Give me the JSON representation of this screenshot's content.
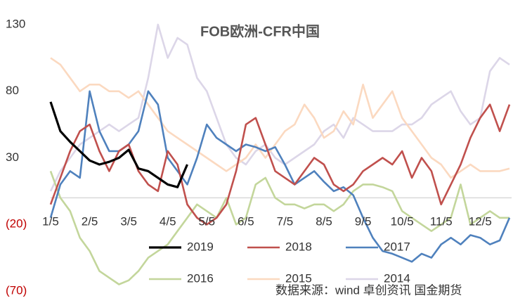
{
  "chart_data": {
    "type": "line",
    "title": "FOB欧洲-CFR中国",
    "source": "数据来源：wind 卓创资讯 国金期货",
    "categories": [
      "1/5",
      null,
      null,
      null,
      "2/5",
      null,
      null,
      null,
      "3/5",
      null,
      null,
      null,
      "4/5",
      null,
      null,
      null,
      "5/5",
      null,
      null,
      null,
      "6/5",
      null,
      null,
      null,
      "7/5",
      null,
      null,
      null,
      "8/5",
      null,
      null,
      null,
      "9/5",
      null,
      null,
      null,
      "10/5",
      null,
      null,
      null,
      "11/5",
      null,
      null,
      null,
      "12/5",
      null,
      null,
      null
    ],
    "ylim": [
      -70,
      130
    ],
    "yticks": [
      130,
      80,
      30,
      {
        "value": -20,
        "label": "(20)"
      },
      {
        "value": -70,
        "label": "(70)"
      }
    ],
    "negative_tick_color": "#c00000",
    "grid": false,
    "series": [
      {
        "name": "2019",
        "color": "#000000",
        "values": [
          72,
          50,
          42,
          35,
          28,
          25,
          27,
          30,
          36,
          22,
          20,
          15,
          10,
          8,
          25,
          null,
          null,
          null,
          null,
          null,
          null,
          null,
          null,
          null,
          null,
          null,
          null,
          null,
          null,
          null,
          null,
          null,
          null,
          null,
          null,
          null,
          null,
          null,
          null,
          null,
          null,
          null,
          null,
          null,
          null,
          null,
          null,
          null
        ]
      },
      {
        "name": "2018",
        "color": "#c0504d",
        "values": [
          -5,
          15,
          35,
          50,
          55,
          35,
          20,
          35,
          40,
          20,
          10,
          5,
          35,
          25,
          -5,
          -15,
          -20,
          -15,
          -5,
          20,
          55,
          60,
          40,
          20,
          15,
          10,
          20,
          30,
          25,
          10,
          5,
          10,
          20,
          25,
          30,
          25,
          35,
          15,
          30,
          20,
          -5,
          10,
          25,
          45,
          60,
          70,
          50,
          70
        ]
      },
      {
        "name": "2017",
        "color": "#4f81bd",
        "values": [
          -15,
          10,
          20,
          15,
          80,
          50,
          35,
          35,
          40,
          50,
          80,
          70,
          30,
          20,
          10,
          30,
          55,
          45,
          40,
          35,
          40,
          38,
          35,
          38,
          25,
          10,
          15,
          20,
          12,
          5,
          8,
          2,
          -15,
          -30,
          -40,
          -42,
          -45,
          -48,
          -42,
          -45,
          -35,
          -30,
          -35,
          -28,
          -30,
          -35,
          -32,
          -15
        ]
      },
      {
        "name": "2016",
        "color": "#c3d69b",
        "values": [
          20,
          0,
          -10,
          -30,
          -40,
          -55,
          -60,
          -65,
          -62,
          -55,
          -45,
          -40,
          -35,
          -25,
          -15,
          -5,
          -10,
          -15,
          0,
          -20,
          -15,
          10,
          15,
          0,
          -5,
          -5,
          -8,
          -5,
          -5,
          -10,
          -5,
          5,
          10,
          10,
          8,
          5,
          -10,
          -15,
          -20,
          -25,
          -20,
          -15,
          10,
          -20,
          -15,
          -10,
          -15,
          -15
        ]
      },
      {
        "name": "2015",
        "color": "#fbd9c0",
        "values": [
          105,
          100,
          90,
          80,
          85,
          85,
          80,
          80,
          75,
          80,
          70,
          60,
          50,
          45,
          40,
          35,
          30,
          25,
          20,
          25,
          30,
          40,
          30,
          40,
          50,
          55,
          70,
          60,
          45,
          50,
          65,
          55,
          85,
          60,
          70,
          80,
          60,
          50,
          40,
          30,
          25,
          15,
          20,
          25,
          20,
          20,
          20,
          22
        ]
      },
      {
        "name": "2014",
        "color": "#dcd6e8",
        "values": [
          5,
          20,
          30,
          40,
          45,
          50,
          55,
          50,
          55,
          60,
          90,
          130,
          105,
          120,
          115,
          90,
          80,
          60,
          40,
          30,
          25,
          35,
          40,
          30,
          25,
          30,
          35,
          40,
          50,
          55,
          45,
          60,
          55,
          50,
          50,
          50,
          55,
          55,
          60,
          70,
          75,
          80,
          65,
          55,
          60,
          95,
          105,
          100
        ]
      }
    ]
  }
}
